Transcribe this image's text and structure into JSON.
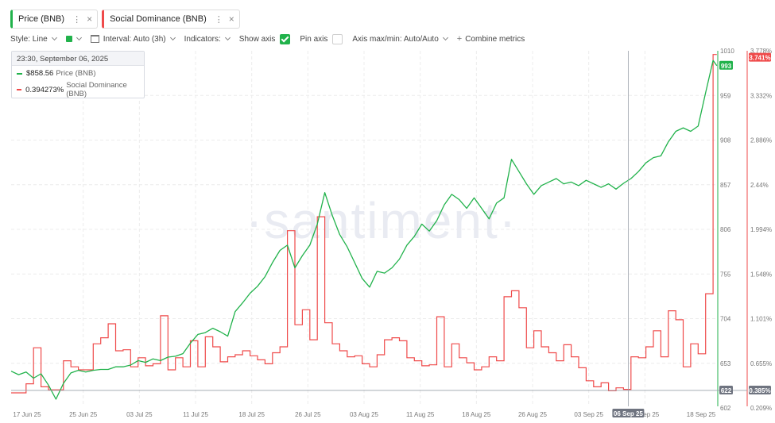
{
  "tabs": [
    {
      "label": "Price (BNB)",
      "color": "#21b24b"
    },
    {
      "label": "Social Dominance (BNB)",
      "color": "#ef4a4a"
    }
  ],
  "toolbar": {
    "style": "Style: Line",
    "interval": "Interval: Auto (3h)",
    "indicators": "Indicators:",
    "show_axis": "Show axis",
    "show_axis_checked": true,
    "pin_axis": "Pin axis",
    "pin_axis_checked": false,
    "axis_maxmin": "Axis max/min: Auto/Auto",
    "combine": "Combine metrics"
  },
  "tooltip": {
    "date": "23:30, September 06, 2025",
    "rows": [
      {
        "value": "$858.56",
        "name": "Price (BNB)",
        "color": "#21b24b"
      },
      {
        "value": "0.394273%",
        "name": "Social Dominance (BNB)",
        "color": "#ef4a4a"
      }
    ]
  },
  "watermark": "·santiment·",
  "chart_data": {
    "type": "line",
    "x_ticks": [
      "17 Jun 25",
      "25 Jun 25",
      "03 Jul 25",
      "11 Jul 25",
      "18 Jul 25",
      "26 Jul 25",
      "03 Aug 25",
      "11 Aug 25",
      "18 Aug 25",
      "26 Aug 25",
      "03 Sep 25",
      "11 Sep 25",
      "18 Sep 25"
    ],
    "x_range": [
      "2025-06-16",
      "2025-09-18"
    ],
    "hover_date": "2025-09-06",
    "hover_label": "06 Sep 25",
    "y_left": {
      "name": "Price (BNB)",
      "ticks": [
        "1010",
        "959",
        "908",
        "857",
        "806",
        "755",
        "704",
        "653",
        "602"
      ],
      "range": [
        602,
        1010
      ],
      "current_label": "993",
      "hover_label": "622",
      "color": "#21b24b"
    },
    "y_right": {
      "name": "Social Dominance (BNB)",
      "ticks": [
        "3.778%",
        "3.332%",
        "2.886%",
        "2.44%",
        "1.994%",
        "1.548%",
        "1.101%",
        "0.655%",
        "0.209%"
      ],
      "range": [
        0.209,
        3.778
      ],
      "current_label": "3.741%",
      "hover_label": "0.385%",
      "color": "#ef4a4a"
    },
    "series": [
      {
        "name": "Price (BNB)",
        "color": "#21b24b",
        "points": [
          [
            "2025-06-16",
            644
          ],
          [
            "2025-06-17",
            640
          ],
          [
            "2025-06-18",
            643
          ],
          [
            "2025-06-19",
            636
          ],
          [
            "2025-06-20",
            641
          ],
          [
            "2025-06-21",
            628
          ],
          [
            "2025-06-22",
            612
          ],
          [
            "2025-06-23",
            630
          ],
          [
            "2025-06-24",
            642
          ],
          [
            "2025-06-25",
            645
          ],
          [
            "2025-06-26",
            643
          ],
          [
            "2025-06-27",
            645
          ],
          [
            "2025-06-28",
            646
          ],
          [
            "2025-06-29",
            646
          ],
          [
            "2025-06-30",
            649
          ],
          [
            "2025-07-01",
            649
          ],
          [
            "2025-07-02",
            651
          ],
          [
            "2025-07-03",
            656
          ],
          [
            "2025-07-04",
            654
          ],
          [
            "2025-07-05",
            658
          ],
          [
            "2025-07-06",
            656
          ],
          [
            "2025-07-07",
            660
          ],
          [
            "2025-07-08",
            661
          ],
          [
            "2025-07-09",
            664
          ],
          [
            "2025-07-10",
            676
          ],
          [
            "2025-07-11",
            686
          ],
          [
            "2025-07-12",
            688
          ],
          [
            "2025-07-13",
            693
          ],
          [
            "2025-07-14",
            689
          ],
          [
            "2025-07-15",
            684
          ],
          [
            "2025-07-16",
            712
          ],
          [
            "2025-07-17",
            722
          ],
          [
            "2025-07-18",
            733
          ],
          [
            "2025-07-19",
            741
          ],
          [
            "2025-07-20",
            752
          ],
          [
            "2025-07-21",
            768
          ],
          [
            "2025-07-22",
            782
          ],
          [
            "2025-07-23",
            788
          ],
          [
            "2025-07-24",
            762
          ],
          [
            "2025-07-25",
            776
          ],
          [
            "2025-07-26",
            788
          ],
          [
            "2025-07-27",
            812
          ],
          [
            "2025-07-28",
            848
          ],
          [
            "2025-07-29",
            822
          ],
          [
            "2025-07-30",
            800
          ],
          [
            "2025-07-31",
            786
          ],
          [
            "2025-08-01",
            768
          ],
          [
            "2025-08-02",
            750
          ],
          [
            "2025-08-03",
            740
          ],
          [
            "2025-08-04",
            758
          ],
          [
            "2025-08-05",
            756
          ],
          [
            "2025-08-06",
            762
          ],
          [
            "2025-08-07",
            772
          ],
          [
            "2025-08-08",
            788
          ],
          [
            "2025-08-09",
            798
          ],
          [
            "2025-08-10",
            812
          ],
          [
            "2025-08-11",
            804
          ],
          [
            "2025-08-12",
            816
          ],
          [
            "2025-08-13",
            834
          ],
          [
            "2025-08-14",
            846
          ],
          [
            "2025-08-15",
            840
          ],
          [
            "2025-08-16",
            830
          ],
          [
            "2025-08-17",
            842
          ],
          [
            "2025-08-18",
            830
          ],
          [
            "2025-08-19",
            818
          ],
          [
            "2025-08-20",
            836
          ],
          [
            "2025-08-21",
            842
          ],
          [
            "2025-08-22",
            886
          ],
          [
            "2025-08-23",
            872
          ],
          [
            "2025-08-24",
            858
          ],
          [
            "2025-08-25",
            846
          ],
          [
            "2025-08-26",
            856
          ],
          [
            "2025-08-27",
            860
          ],
          [
            "2025-08-28",
            864
          ],
          [
            "2025-08-29",
            858
          ],
          [
            "2025-08-30",
            860
          ],
          [
            "2025-08-31",
            856
          ],
          [
            "2025-09-01",
            862
          ],
          [
            "2025-09-02",
            858
          ],
          [
            "2025-09-03",
            854
          ],
          [
            "2025-09-04",
            858
          ],
          [
            "2025-09-05",
            852
          ],
          [
            "2025-09-06",
            858.56
          ],
          [
            "2025-09-07",
            864
          ],
          [
            "2025-09-08",
            872
          ],
          [
            "2025-09-09",
            882
          ],
          [
            "2025-09-10",
            888
          ],
          [
            "2025-09-11",
            890
          ],
          [
            "2025-09-12",
            906
          ],
          [
            "2025-09-13",
            918
          ],
          [
            "2025-09-14",
            922
          ],
          [
            "2025-09-15",
            918
          ],
          [
            "2025-09-16",
            924
          ],
          [
            "2025-09-17",
            962
          ],
          [
            "2025-09-18",
            999
          ],
          [
            "2025-09-18T12:00",
            993
          ]
        ]
      },
      {
        "name": "Social Dominance (BNB)",
        "color": "#ef4a4a",
        "points": [
          [
            "2025-06-16",
            0.36
          ],
          [
            "2025-06-18",
            0.45
          ],
          [
            "2025-06-19",
            0.81
          ],
          [
            "2025-06-20",
            0.42
          ],
          [
            "2025-06-21",
            0.39
          ],
          [
            "2025-06-23",
            0.68
          ],
          [
            "2025-06-24",
            0.62
          ],
          [
            "2025-06-25",
            0.59
          ],
          [
            "2025-06-27",
            0.85
          ],
          [
            "2025-06-28",
            0.91
          ],
          [
            "2025-06-29",
            1.05
          ],
          [
            "2025-06-30",
            0.78
          ],
          [
            "2025-07-01",
            0.79
          ],
          [
            "2025-07-02",
            0.62
          ],
          [
            "2025-07-03",
            0.71
          ],
          [
            "2025-07-04",
            0.63
          ],
          [
            "2025-07-05",
            0.65
          ],
          [
            "2025-07-06",
            1.13
          ],
          [
            "2025-07-07",
            0.59
          ],
          [
            "2025-07-08",
            0.71
          ],
          [
            "2025-07-09",
            0.62
          ],
          [
            "2025-07-10",
            0.88
          ],
          [
            "2025-07-11",
            0.62
          ],
          [
            "2025-07-12",
            0.92
          ],
          [
            "2025-07-13",
            0.82
          ],
          [
            "2025-07-14",
            0.67
          ],
          [
            "2025-07-15",
            0.72
          ],
          [
            "2025-07-16",
            0.74
          ],
          [
            "2025-07-17",
            0.78
          ],
          [
            "2025-07-18",
            0.73
          ],
          [
            "2025-07-19",
            0.69
          ],
          [
            "2025-07-20",
            0.65
          ],
          [
            "2025-07-21",
            0.76
          ],
          [
            "2025-07-22",
            0.82
          ],
          [
            "2025-07-23",
            1.98
          ],
          [
            "2025-07-24",
            1.04
          ],
          [
            "2025-07-25",
            1.19
          ],
          [
            "2025-07-26",
            0.89
          ],
          [
            "2025-07-27",
            2.12
          ],
          [
            "2025-07-28",
            1.06
          ],
          [
            "2025-07-29",
            0.85
          ],
          [
            "2025-07-30",
            0.78
          ],
          [
            "2025-07-31",
            0.72
          ],
          [
            "2025-08-01",
            0.73
          ],
          [
            "2025-08-02",
            0.65
          ],
          [
            "2025-08-03",
            0.62
          ],
          [
            "2025-08-04",
            0.74
          ],
          [
            "2025-08-05",
            0.89
          ],
          [
            "2025-08-06",
            0.91
          ],
          [
            "2025-08-07",
            0.88
          ],
          [
            "2025-08-08",
            0.71
          ],
          [
            "2025-08-09",
            0.68
          ],
          [
            "2025-08-10",
            0.63
          ],
          [
            "2025-08-11",
            0.64
          ],
          [
            "2025-08-12",
            1.12
          ],
          [
            "2025-08-13",
            0.62
          ],
          [
            "2025-08-14",
            0.85
          ],
          [
            "2025-08-15",
            0.71
          ],
          [
            "2025-08-16",
            0.66
          ],
          [
            "2025-08-17",
            0.59
          ],
          [
            "2025-08-18",
            0.62
          ],
          [
            "2025-08-19",
            0.72
          ],
          [
            "2025-08-20",
            0.68
          ],
          [
            "2025-08-21",
            1.32
          ],
          [
            "2025-08-22",
            1.38
          ],
          [
            "2025-08-23",
            1.21
          ],
          [
            "2025-08-24",
            0.81
          ],
          [
            "2025-08-25",
            0.98
          ],
          [
            "2025-08-26",
            0.82
          ],
          [
            "2025-08-27",
            0.76
          ],
          [
            "2025-08-28",
            0.68
          ],
          [
            "2025-08-29",
            0.84
          ],
          [
            "2025-08-30",
            0.72
          ],
          [
            "2025-08-31",
            0.61
          ],
          [
            "2025-09-01",
            0.48
          ],
          [
            "2025-09-02",
            0.42
          ],
          [
            "2025-09-03",
            0.46
          ],
          [
            "2025-09-04",
            0.38
          ],
          [
            "2025-09-05",
            0.41
          ],
          [
            "2025-09-06",
            0.394273
          ],
          [
            "2025-09-07",
            0.72
          ],
          [
            "2025-09-08",
            0.71
          ],
          [
            "2025-09-09",
            0.82
          ],
          [
            "2025-09-10",
            0.98
          ],
          [
            "2025-09-11",
            0.72
          ],
          [
            "2025-09-12",
            1.18
          ],
          [
            "2025-09-13",
            1.09
          ],
          [
            "2025-09-14",
            0.62
          ],
          [
            "2025-09-15",
            0.85
          ],
          [
            "2025-09-16",
            0.75
          ],
          [
            "2025-09-17",
            1.35
          ],
          [
            "2025-09-18",
            3.741
          ],
          [
            "2025-09-18T12:00",
            3.741
          ]
        ]
      }
    ],
    "grid": true
  }
}
